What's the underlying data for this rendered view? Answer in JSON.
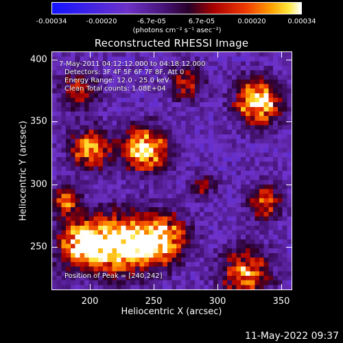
{
  "colorbar": {
    "ticks": [
      "-0.00034",
      "-0.00020",
      "-6.7e-05",
      "6.7e-05",
      "0.00020",
      "0.00034"
    ],
    "units": "(photons cm⁻² s⁻¹ asec⁻²)"
  },
  "title": "Reconstructed RHESSI Image",
  "info": {
    "time_range": "7-May-2011 04:12:12.000 to 04:18:12.000",
    "detectors": "Detectors: 3F 4F 5F 6F 7F 8F, Att 0",
    "energy": "Energy Range: 12.0 - 25.0 keV",
    "clean": "Clean    Total counts: 1.08E+04",
    "peak": "Position of Peak = [240,242]"
  },
  "x_axis": {
    "label": "Heliocentric X (arcsec)",
    "ticks": [
      "200",
      "250",
      "300",
      "350"
    ]
  },
  "y_axis": {
    "label": "Heliocentric Y (arcsec)",
    "ticks": [
      "400",
      "350",
      "300",
      "250"
    ]
  },
  "footer_date": "11-May-2022 09:37"
}
